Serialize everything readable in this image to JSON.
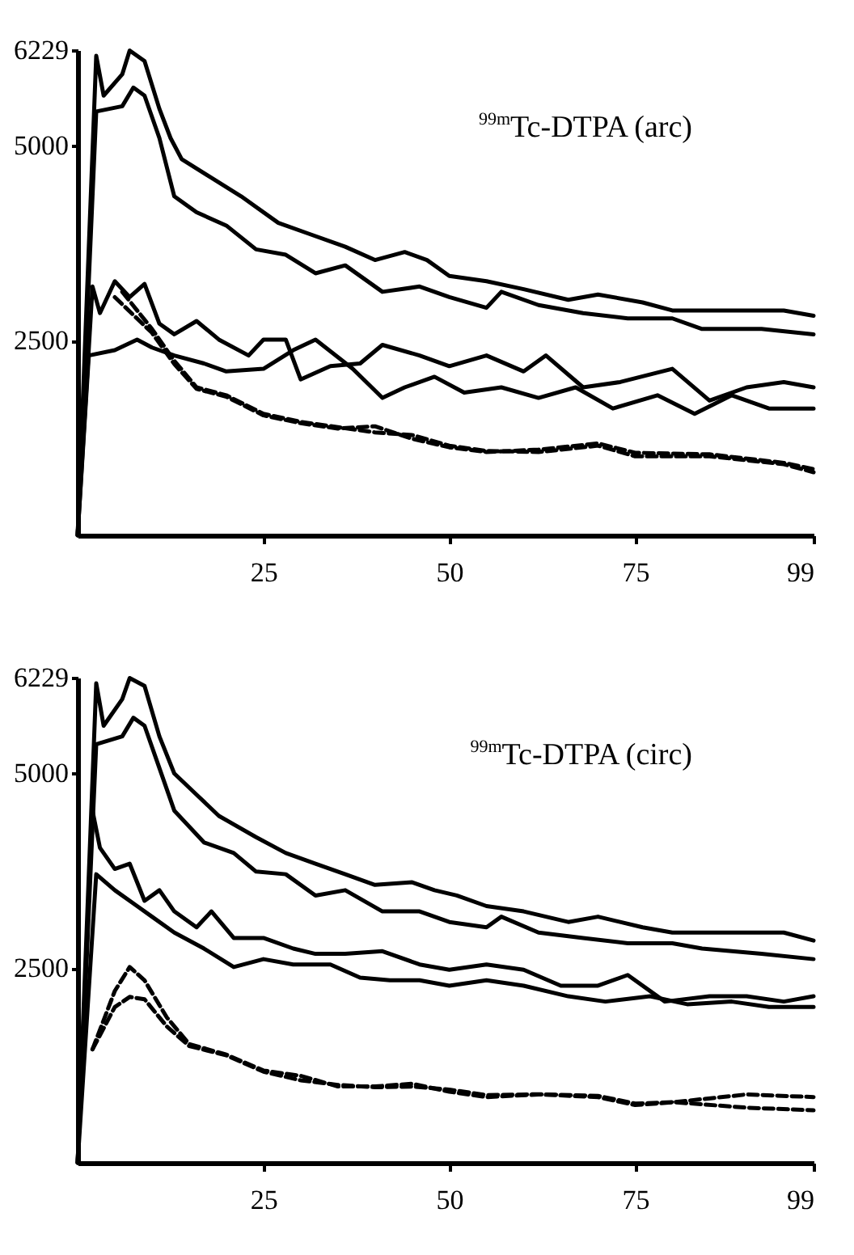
{
  "chart_data": [
    {
      "type": "line",
      "annotations": [
        "$^{99m}$Tc-DTPA  (arc)"
      ],
      "xlim": [
        0,
        99
      ],
      "xticks": [
        25,
        50,
        75,
        99
      ],
      "ylim": [
        0,
        6229
      ],
      "yticks": [
        2500,
        5000,
        6229
      ],
      "grid": false,
      "legend": false,
      "series": [
        {
          "color": "#000000",
          "line_style": "solid",
          "x": [
            0,
            2.5,
            3.5,
            6,
            7,
            9,
            11,
            12.5,
            14,
            18,
            22,
            27,
            31,
            36,
            40,
            44,
            47,
            50,
            55,
            60,
            66,
            70,
            76,
            80,
            88,
            95,
            99
          ],
          "values": [
            0,
            6156,
            5645,
            5918,
            6224,
            6088,
            5475,
            5100,
            4828,
            4590,
            4352,
            4011,
            3875,
            3705,
            3534,
            3637,
            3534,
            3330,
            3262,
            3160,
            3024,
            3092,
            2990,
            2887,
            2887,
            2887,
            2819
          ]
        },
        {
          "color": "#000000",
          "line_style": "solid",
          "x": [
            0,
            2.5,
            6,
            7.5,
            9,
            11,
            13,
            16,
            20,
            24,
            28,
            32,
            36,
            41,
            46,
            50,
            55,
            57,
            62,
            68,
            74,
            80,
            84,
            92,
            99
          ],
          "values": [
            0,
            5441,
            5509,
            5748,
            5645,
            5100,
            4352,
            4147,
            3977,
            3671,
            3602,
            3364,
            3466,
            3126,
            3194,
            3058,
            2921,
            3126,
            2956,
            2853,
            2785,
            2785,
            2649,
            2649,
            2581
          ]
        },
        {
          "color": "#000000",
          "line_style": "solid",
          "x": [
            0,
            2,
            3,
            5,
            7,
            9,
            11,
            13,
            16,
            19,
            23,
            25,
            28,
            30,
            34,
            38,
            41,
            46,
            50,
            55,
            60,
            63,
            68,
            73,
            80,
            85,
            90,
            95,
            99
          ],
          "values": [
            0,
            3194,
            2853,
            3262,
            3058,
            3228,
            2717,
            2581,
            2751,
            2513,
            2309,
            2513,
            2513,
            2002,
            2172,
            2206,
            2445,
            2309,
            2172,
            2309,
            2104,
            2309,
            1900,
            1968,
            2138,
            1730,
            1900,
            1968,
            1900
          ]
        },
        {
          "color": "#000000",
          "line_style": "solid",
          "x": [
            0,
            1.5,
            5,
            8,
            10,
            13,
            17,
            20,
            25,
            29,
            32,
            37,
            41,
            44,
            48,
            52,
            57,
            62,
            67,
            72,
            78,
            83,
            88,
            93,
            99
          ],
          "values": [
            0,
            2309,
            2377,
            2513,
            2411,
            2309,
            2206,
            2104,
            2138,
            2377,
            2513,
            2138,
            1764,
            1900,
            2036,
            1832,
            1900,
            1764,
            1900,
            1628,
            1798,
            1560,
            1798,
            1628,
            1628
          ]
        },
        {
          "color": "#000000",
          "line_style": "dashed",
          "x": [
            6,
            10,
            13,
            16,
            20,
            25,
            30,
            35,
            40,
            45,
            50,
            55,
            62,
            70,
            75,
            85,
            95,
            99
          ],
          "values": [
            3126,
            2649,
            2241,
            1900,
            1798,
            1560,
            1457,
            1389,
            1321,
            1287,
            1151,
            1083,
            1069,
            1151,
            1015,
            1015,
            913,
            810
          ]
        },
        {
          "color": "#000000",
          "line_style": "dashed",
          "x": [
            5,
            10,
            13,
            16,
            20,
            25,
            30,
            35,
            40,
            45,
            50,
            55,
            62,
            70,
            75,
            85,
            95,
            99
          ],
          "values": [
            3058,
            2600,
            2200,
            1880,
            1780,
            1540,
            1440,
            1370,
            1400,
            1240,
            1130,
            1070,
            1100,
            1180,
            1060,
            1040,
            930,
            850
          ]
        }
      ]
    },
    {
      "type": "line",
      "annotations": [
        "$^{99m}$Tc-DTPA  (circ)"
      ],
      "xlim": [
        0,
        99
      ],
      "xticks": [
        25,
        50,
        75,
        99
      ],
      "ylim": [
        0,
        6229
      ],
      "yticks": [
        2500,
        5000,
        6229
      ],
      "grid": false,
      "legend": false,
      "series": [
        {
          "color": "#000000",
          "line_style": "solid",
          "x": [
            0,
            2.5,
            3.5,
            6,
            7,
            9,
            11,
            13,
            16,
            19,
            24,
            28,
            32,
            36,
            40,
            45,
            48,
            51,
            55,
            60,
            66,
            70,
            76,
            80,
            88,
            95,
            99
          ],
          "values": [
            0,
            6156,
            5611,
            5952,
            6224,
            6122,
            5475,
            4999,
            4726,
            4454,
            4181,
            3977,
            3841,
            3705,
            3568,
            3602,
            3500,
            3432,
            3296,
            3228,
            3092,
            3160,
            3024,
            2956,
            2956,
            2956,
            2853
          ]
        },
        {
          "color": "#000000",
          "line_style": "solid",
          "x": [
            0,
            2.5,
            6,
            7.5,
            9,
            11,
            13,
            17,
            21,
            24,
            28,
            32,
            36,
            41,
            46,
            50,
            55,
            57,
            62,
            68,
            74,
            80,
            84,
            92,
            99
          ],
          "values": [
            0,
            5373,
            5475,
            5714,
            5611,
            5067,
            4522,
            4113,
            3977,
            3739,
            3705,
            3432,
            3500,
            3228,
            3228,
            3092,
            3024,
            3160,
            2956,
            2887,
            2819,
            2819,
            2751,
            2683,
            2615
          ]
        },
        {
          "color": "#000000",
          "line_style": "solid",
          "x": [
            0,
            2,
            3,
            5,
            7,
            9,
            11,
            13,
            16,
            18,
            21,
            25,
            29,
            32,
            36,
            41,
            46,
            50,
            55,
            60,
            65,
            70,
            74,
            79,
            85,
            90,
            95,
            99
          ],
          "values": [
            0,
            4522,
            4045,
            3773,
            3841,
            3364,
            3500,
            3228,
            3024,
            3228,
            2887,
            2887,
            2751,
            2683,
            2683,
            2717,
            2547,
            2479,
            2547,
            2479,
            2274,
            2274,
            2411,
            2070,
            2138,
            2138,
            2070,
            2138
          ]
        },
        {
          "color": "#000000",
          "line_style": "solid",
          "x": [
            0,
            2.5,
            5,
            8,
            10,
            13,
            17,
            21,
            25,
            29,
            34,
            38,
            42,
            46,
            50,
            55,
            60,
            66,
            71,
            77,
            82,
            88,
            93,
            99
          ],
          "values": [
            0,
            3705,
            3500,
            3296,
            3160,
            2956,
            2751,
            2513,
            2615,
            2547,
            2547,
            2377,
            2343,
            2343,
            2274,
            2343,
            2274,
            2138,
            2070,
            2138,
            2036,
            2070,
            2002,
            2002
          ]
        },
        {
          "color": "#000000",
          "line_style": "dashed",
          "x": [
            2,
            5,
            7,
            9,
            12,
            15,
            20,
            25,
            30,
            35,
            40,
            45,
            50,
            55,
            62,
            70,
            75,
            80,
            90,
            99
          ],
          "values": [
            1457,
            2206,
            2513,
            2343,
            1866,
            1525,
            1389,
            1185,
            1117,
            981,
            981,
            1015,
            913,
            844,
            878,
            844,
            742,
            776,
            878,
            844
          ]
        },
        {
          "color": "#000000",
          "line_style": "dashed",
          "x": [
            2,
            5,
            7,
            9,
            12,
            15,
            20,
            25,
            30,
            35,
            40,
            45,
            50,
            55,
            62,
            70,
            75,
            80,
            90,
            99
          ],
          "values": [
            1457,
            2000,
            2130,
            2100,
            1750,
            1500,
            1380,
            1170,
            1060,
            1000,
            970,
            980,
            940,
            870,
            880,
            860,
            760,
            780,
            708,
            674
          ]
        }
      ]
    }
  ]
}
